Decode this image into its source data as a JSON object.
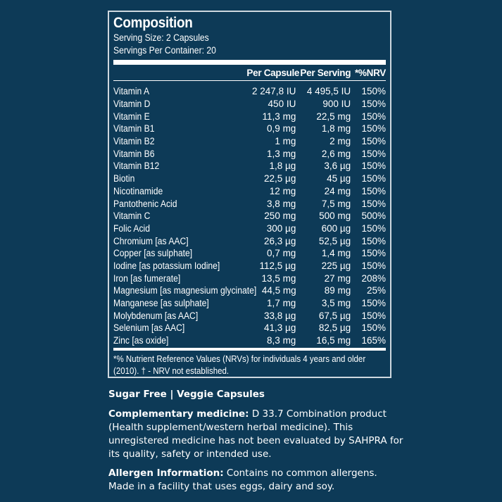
{
  "panel": {
    "title": "Composition",
    "serving_size": "Serving Size: 2 Capsules",
    "servings_per_container": "Servings Per Container: 20",
    "headers": {
      "name": "",
      "per_capsule": "Per Capsule",
      "per_serving": "Per Serving",
      "nrv": "*%NRV"
    },
    "rows": [
      {
        "name": "Vitamin A",
        "per_capsule": "2 247,8 IU",
        "per_serving": "4 495,5 IU",
        "nrv": "150%"
      },
      {
        "name": "Vitamin D",
        "per_capsule": "450 IU",
        "per_serving": "900 IU",
        "nrv": "150%"
      },
      {
        "name": "Vitamin E",
        "per_capsule": "11,3 mg",
        "per_serving": "22,5 mg",
        "nrv": "150%"
      },
      {
        "name": "Vitamin B1",
        "per_capsule": "0,9 mg",
        "per_serving": "1,8 mg",
        "nrv": "150%"
      },
      {
        "name": "Vitamin B2",
        "per_capsule": "1 mg",
        "per_serving": "2 mg",
        "nrv": "150%"
      },
      {
        "name": "Vitamin B6",
        "per_capsule": "1,3 mg",
        "per_serving": "2,6 mg",
        "nrv": "150%"
      },
      {
        "name": "Vitamin B12",
        "per_capsule": "1,8 µg",
        "per_serving": "3,6 µg",
        "nrv": "150%"
      },
      {
        "name": "Biotin",
        "per_capsule": "22,5 µg",
        "per_serving": "45 µg",
        "nrv": "150%"
      },
      {
        "name": "Nicotinamide",
        "per_capsule": "12  mg",
        "per_serving": "24 mg",
        "nrv": "150%"
      },
      {
        "name": "Pantothenic Acid",
        "per_capsule": "3,8 mg",
        "per_serving": "7,5 mg",
        "nrv": "150%"
      },
      {
        "name": "Vitamin C",
        "per_capsule": "250 mg",
        "per_serving": "500 mg",
        "nrv": "500%"
      },
      {
        "name": "Folic Acid",
        "per_capsule": "300 µg",
        "per_serving": "600 µg",
        "nrv": "150%"
      },
      {
        "name": "Chromium [as AAC]",
        "per_capsule": "26,3 µg",
        "per_serving": "52,5 µg",
        "nrv": "150%"
      },
      {
        "name": "Copper [as sulphate]",
        "per_capsule": "0,7 mg",
        "per_serving": "1,4 mg",
        "nrv": "150%"
      },
      {
        "name": "Iodine [as potassium Iodine]",
        "per_capsule": "112,5 µg",
        "per_serving": "225 µg",
        "nrv": "150%"
      },
      {
        "name": "Iron [as fumerate]",
        "per_capsule": "13,5 mg",
        "per_serving": "27 mg",
        "nrv": "208%"
      },
      {
        "name": "Magnesium [as magnesium glycinate]",
        "per_capsule": "44,5 mg",
        "per_serving": "89 mg",
        "nrv": "25%"
      },
      {
        "name": "Manganese [as sulphate]",
        "per_capsule": "1,7 mg",
        "per_serving": "3,5 mg",
        "nrv": "150%"
      },
      {
        "name": "Molybdenum [as AAC]",
        "per_capsule": "33,8 µg",
        "per_serving": "67,5 µg",
        "nrv": "150%"
      },
      {
        "name": "Selenium [as AAC]",
        "per_capsule": "41,3 µg",
        "per_serving": "82,5 µg",
        "nrv": "150%"
      },
      {
        "name": "Zinc [as oxide]",
        "per_capsule": "8,3 mg",
        "per_serving": "16,5 mg",
        "nrv": "165%"
      }
    ],
    "footnote": "*%  Nutrient Reference Values (NRVs)  for individuals 4 years and older (2010). † - NRV not established."
  },
  "tagline": "Sugar Free | Veggie Capsules",
  "complementary": {
    "label": "Complementary medicine:",
    "text": " D 33.7 Combination product (Health supplement/western herbal medicine). This unregistered medicine has not been evaluated by SAHPRA for its quality, safety or intended use."
  },
  "allergen": {
    "label": "Allergen Information:",
    "text": " Contains no common allergens. Made in a facility that uses eggs, dairy and soy."
  },
  "colors": {
    "background": "#0d3a57",
    "text": "#ffffff",
    "border": "#cfd8df"
  }
}
